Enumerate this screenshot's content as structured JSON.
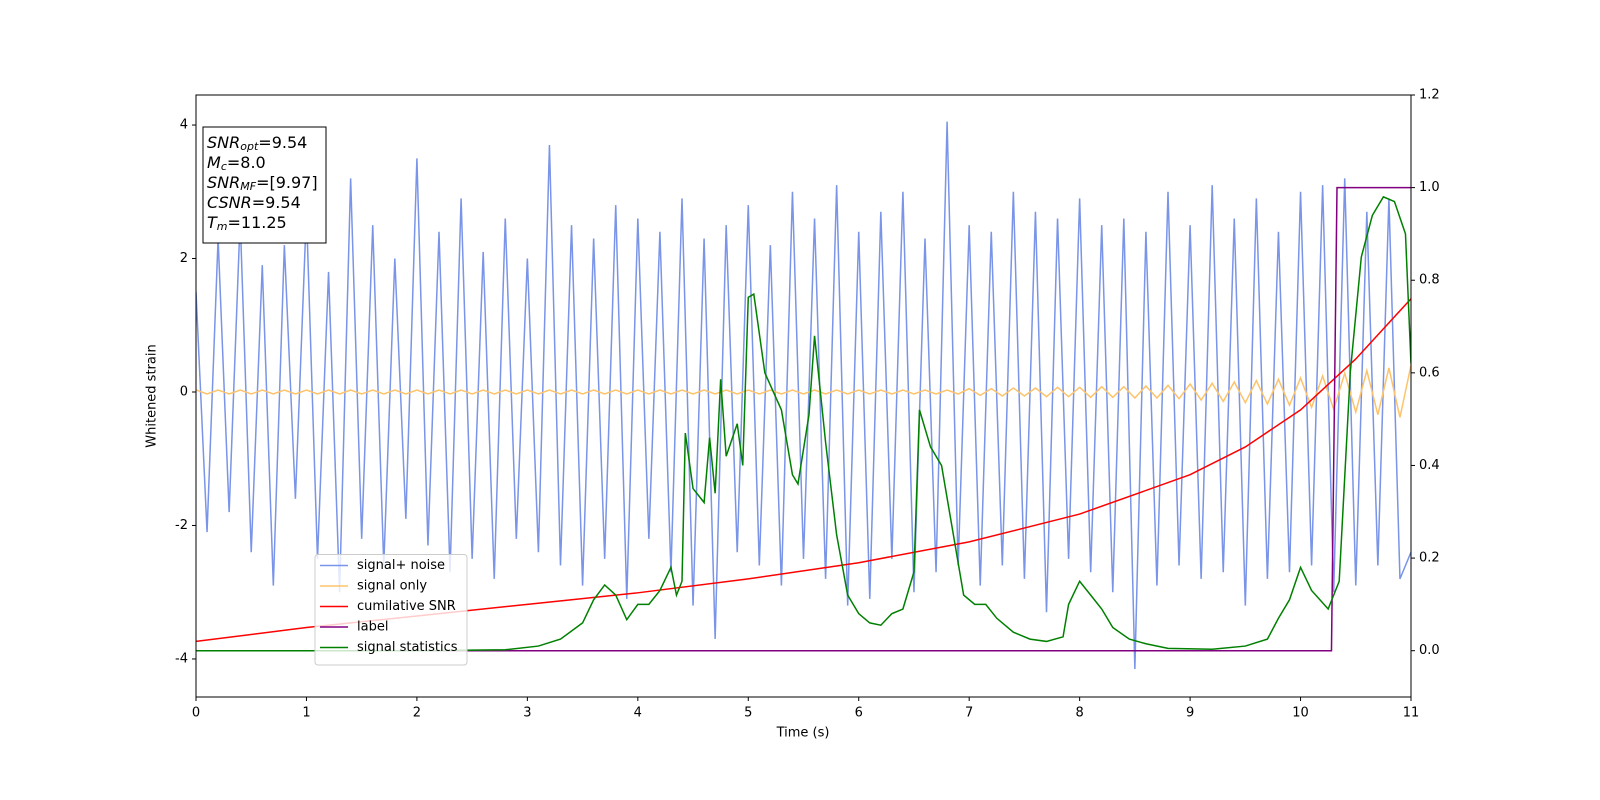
{
  "chart_data": {
    "type": "line",
    "xlabel": "Time (s)",
    "ylabel": "Whitened strain",
    "xlim": [
      0,
      11
    ],
    "xticks": [
      0,
      1,
      2,
      3,
      4,
      5,
      6,
      7,
      8,
      9,
      10,
      11
    ],
    "ylim": [
      -4.57,
      4.45
    ],
    "yticks": [
      -4,
      -2,
      0,
      2,
      4
    ],
    "y2lim": [
      -0.1,
      1.2
    ],
    "y2ticks": [
      {
        "value": 0,
        "label": "0.0"
      },
      0.2,
      0.4,
      0.6,
      0.8,
      {
        "value": 1,
        "label": "1.0"
      },
      1.2
    ],
    "legend_loc": "lower left",
    "annotation": [
      {
        "name": "SNR",
        "sub": "opt",
        "value": "=9.54"
      },
      {
        "name": "M",
        "sub": "c",
        "value": "=8.0"
      },
      {
        "name": "SNR",
        "sub": "MF",
        "value": "=[9.97]"
      },
      {
        "name": "CSNR",
        "value": "=9.54"
      },
      {
        "name": "T",
        "sub": "m",
        "value": "=11.25"
      }
    ],
    "x": [
      0,
      0.1,
      0.2,
      0.3,
      0.4,
      0.5,
      0.6,
      0.7,
      0.8,
      0.9,
      1,
      1.1,
      1.2,
      1.3,
      1.4,
      1.5,
      1.6,
      1.7,
      1.8,
      1.9,
      2,
      2.1,
      2.2,
      2.3,
      2.4,
      2.5,
      2.6,
      2.7,
      2.8,
      2.9,
      3,
      3.1,
      3.2,
      3.3,
      3.4,
      3.5,
      3.6,
      3.7,
      3.8,
      3.9,
      4,
      4.1,
      4.2,
      4.3,
      4.4,
      4.5,
      4.6,
      4.7,
      4.8,
      4.9,
      5,
      5.1,
      5.2,
      5.3,
      5.4,
      5.5,
      5.6,
      5.7,
      5.8,
      5.9,
      6,
      6.1,
      6.2,
      6.3,
      6.4,
      6.5,
      6.6,
      6.7,
      6.8,
      6.9,
      7,
      7.1,
      7.2,
      7.3,
      7.4,
      7.5,
      7.6,
      7.7,
      7.8,
      7.9,
      8,
      8.1,
      8.2,
      8.3,
      8.4,
      8.5,
      8.6,
      8.7,
      8.8,
      8.9,
      9,
      9.1,
      9.2,
      9.3,
      9.4,
      9.5,
      9.6,
      9.7,
      9.8,
      9.9,
      10,
      10.1,
      10.2,
      10.3,
      10.4,
      10.5,
      10.6,
      10.7,
      10.8,
      10.9,
      11
    ],
    "series": [
      {
        "name": "signal+ noise",
        "color": "#7994e8",
        "values": [
          1.5,
          -2.1,
          2.3,
          -1.8,
          2.6,
          -2.4,
          1.9,
          -2.9,
          2.2,
          -1.6,
          2.7,
          -2.5,
          1.8,
          -3.0,
          3.2,
          -2.2,
          2.5,
          -2.6,
          2.0,
          -1.9,
          3.5,
          -2.3,
          2.4,
          -2.7,
          2.9,
          -2.5,
          2.1,
          -2.8,
          2.6,
          -2.2,
          2.0,
          -2.4,
          3.7,
          -2.6,
          2.5,
          -2.9,
          2.3,
          -2.5,
          2.8,
          -3.1,
          2.6,
          -2.2,
          2.4,
          -2.7,
          2.9,
          -3.2,
          2.3,
          -3.7,
          2.5,
          -2.4,
          2.8,
          -2.6,
          2.2,
          -2.9,
          3.0,
          -2.5,
          2.6,
          -2.8,
          3.1,
          -3.2,
          2.4,
          -3.1,
          2.7,
          -2.5,
          3.0,
          -3.0,
          2.3,
          -2.7,
          4.05,
          -2.6,
          2.5,
          -2.9,
          2.4,
          -2.6,
          3.0,
          -2.8,
          2.7,
          -3.3,
          2.6,
          -2.5,
          2.9,
          -2.7,
          2.5,
          -3.0,
          2.6,
          -4.15,
          2.4,
          -2.9,
          3.0,
          -2.6,
          2.5,
          -2.8,
          3.1,
          -2.7,
          2.6,
          -3.2,
          2.9,
          -2.8,
          2.4,
          -2.7,
          3.0,
          -2.6,
          3.1,
          -3.0,
          3.2,
          -2.9,
          2.7,
          -2.6,
          2.9,
          -2.8,
          -2.4
        ]
      },
      {
        "name": "signal only",
        "color": "#fdc36a",
        "values": [
          0.03,
          -0.03,
          0.03,
          -0.03,
          0.03,
          -0.03,
          0.03,
          -0.03,
          0.03,
          -0.03,
          0.03,
          -0.03,
          0.03,
          -0.03,
          0.03,
          -0.03,
          0.03,
          -0.03,
          0.03,
          -0.03,
          0.03,
          -0.03,
          0.03,
          -0.03,
          0.03,
          -0.03,
          0.03,
          -0.03,
          0.03,
          -0.03,
          0.03,
          -0.03,
          0.03,
          -0.03,
          0.03,
          -0.03,
          0.03,
          -0.03,
          0.03,
          -0.03,
          0.03,
          -0.03,
          0.03,
          -0.03,
          0.03,
          -0.03,
          0.03,
          -0.03,
          0.03,
          -0.03,
          0.03,
          -0.03,
          0.03,
          -0.03,
          0.03,
          -0.03,
          0.03,
          -0.03,
          0.03,
          -0.03,
          0.03,
          -0.03,
          0.03,
          -0.03,
          0.03,
          -0.03,
          0.03,
          -0.03,
          0.03,
          -0.03,
          0.05,
          -0.05,
          0.05,
          -0.06,
          0.06,
          -0.06,
          0.06,
          -0.07,
          0.07,
          -0.07,
          0.07,
          -0.08,
          0.08,
          -0.08,
          0.08,
          -0.09,
          0.09,
          -0.09,
          0.1,
          -0.1,
          0.12,
          -0.12,
          0.13,
          -0.14,
          0.15,
          -0.16,
          0.17,
          -0.18,
          0.19,
          -0.2,
          0.21,
          -0.23,
          0.24,
          -0.26,
          0.28,
          -0.3,
          0.32,
          -0.34,
          0.36,
          -0.38,
          0.4
        ]
      },
      {
        "name": "cumilative SNR",
        "color": "#ff0000",
        "axis": "y2",
        "x": [
          0,
          1,
          2,
          3,
          4,
          5,
          6,
          7,
          8,
          9,
          9.5,
          10,
          10.5,
          11
        ],
        "values": [
          0.02,
          0.05,
          0.075,
          0.1,
          0.125,
          0.155,
          0.19,
          0.235,
          0.295,
          0.38,
          0.44,
          0.52,
          0.63,
          0.76
        ]
      },
      {
        "name": "label",
        "color": "#800080",
        "axis": "y2",
        "x": [
          0,
          10.28,
          10.33,
          11
        ],
        "values": [
          0,
          0,
          1,
          1
        ]
      },
      {
        "name": "signal statistics",
        "color": "#008000",
        "axis": "y2",
        "x": [
          0,
          0.5,
          1,
          2,
          2.8,
          3.1,
          3.3,
          3.5,
          3.6,
          3.7,
          3.8,
          3.9,
          4.0,
          4.1,
          4.2,
          4.3,
          4.35,
          4.4,
          4.43,
          4.5,
          4.6,
          4.65,
          4.7,
          4.75,
          4.8,
          4.9,
          4.95,
          5.0,
          5.05,
          5.15,
          5.3,
          5.4,
          5.45,
          5.55,
          5.6,
          5.7,
          5.8,
          5.9,
          6.0,
          6.1,
          6.2,
          6.3,
          6.4,
          6.5,
          6.55,
          6.65,
          6.75,
          6.85,
          6.95,
          7.05,
          7.15,
          7.25,
          7.4,
          7.55,
          7.7,
          7.85,
          7.9,
          8.0,
          8.1,
          8.2,
          8.3,
          8.45,
          8.6,
          8.8,
          9.2,
          9.5,
          9.7,
          9.8,
          9.9,
          10.0,
          10.1,
          10.25,
          10.35,
          10.45,
          10.55,
          10.65,
          10.75,
          10.85,
          10.95,
          11
        ],
        "values": [
          0,
          0,
          0,
          0,
          0.002,
          0.01,
          0.025,
          0.06,
          0.11,
          0.142,
          0.12,
          0.067,
          0.1,
          0.1,
          0.13,
          0.18,
          0.12,
          0.15,
          0.47,
          0.35,
          0.32,
          0.46,
          0.34,
          0.586,
          0.42,
          0.49,
          0.4,
          0.763,
          0.77,
          0.6,
          0.52,
          0.38,
          0.36,
          0.51,
          0.68,
          0.45,
          0.25,
          0.12,
          0.08,
          0.06,
          0.055,
          0.08,
          0.09,
          0.17,
          0.52,
          0.44,
          0.4,
          0.26,
          0.12,
          0.1,
          0.1,
          0.07,
          0.04,
          0.025,
          0.02,
          0.03,
          0.1,
          0.15,
          0.12,
          0.09,
          0.05,
          0.025,
          0.015,
          0.005,
          0.003,
          0.01,
          0.025,
          0.07,
          0.11,
          0.18,
          0.13,
          0.09,
          0.15,
          0.6,
          0.85,
          0.94,
          0.98,
          0.97,
          0.9,
          0.62
        ]
      }
    ]
  }
}
